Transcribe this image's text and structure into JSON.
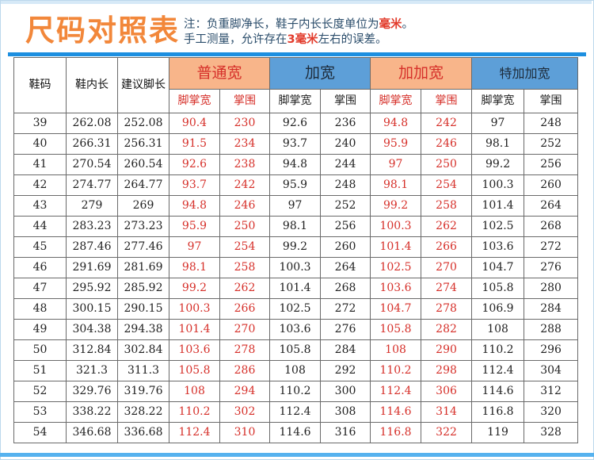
{
  "title": "尺码对照表",
  "note": {
    "line1_prefix": "注：负重脚净长，鞋子内长长度单位为",
    "line1_unit": "毫米",
    "line1_suffix": "。",
    "line2_prefix": "手工测量，允许存在",
    "line2_value": "3毫米",
    "line2_suffix": "左右的误差。"
  },
  "colors": {
    "title": "#f2873a",
    "accent_blue": "#1d8fe0",
    "orange_header": "#f8b58a",
    "blue_header": "#5d9fd8",
    "red_text": "#d6302a"
  },
  "table": {
    "headers": {
      "size": "鞋码",
      "inner_length": "鞋内长",
      "suggested_foot_length": "建议脚长",
      "groups": [
        "普通宽",
        "加宽",
        "加加宽",
        "特加加宽"
      ],
      "sub": [
        "脚掌宽",
        "掌围",
        "脚掌宽",
        "掌围",
        "脚掌宽",
        "掌围",
        "脚掌宽",
        "掌围"
      ]
    },
    "rows": [
      [
        "39",
        "262.08",
        "252.08",
        "90.4",
        "230",
        "92.6",
        "236",
        "94.8",
        "242",
        "97",
        "248"
      ],
      [
        "40",
        "266.31",
        "256.31",
        "91.5",
        "234",
        "93.7",
        "240",
        "95.9",
        "246",
        "98.1",
        "252"
      ],
      [
        "41",
        "270.54",
        "260.54",
        "92.6",
        "238",
        "94.8",
        "244",
        "97",
        "250",
        "99.2",
        "256"
      ],
      [
        "42",
        "274.77",
        "264.77",
        "93.7",
        "242",
        "95.9",
        "248",
        "98.1",
        "254",
        "100.3",
        "260"
      ],
      [
        "43",
        "279",
        "269",
        "94.8",
        "246",
        "97",
        "252",
        "99.2",
        "258",
        "101.4",
        "264"
      ],
      [
        "44",
        "283.23",
        "273.23",
        "95.9",
        "250",
        "98.1",
        "256",
        "100.3",
        "262",
        "102.5",
        "268"
      ],
      [
        "45",
        "287.46",
        "277.46",
        "97",
        "254",
        "99.2",
        "260",
        "101.4",
        "266",
        "103.6",
        "272"
      ],
      [
        "46",
        "291.69",
        "281.69",
        "98.1",
        "258",
        "100.3",
        "264",
        "102.5",
        "270",
        "104.7",
        "276"
      ],
      [
        "47",
        "295.92",
        "285.92",
        "99.2",
        "262",
        "101.4",
        "268",
        "103.6",
        "274",
        "105.8",
        "280"
      ],
      [
        "48",
        "300.15",
        "290.15",
        "100.3",
        "266",
        "102.5",
        "272",
        "104.7",
        "278",
        "106.9",
        "284"
      ],
      [
        "49",
        "304.38",
        "294.38",
        "101.4",
        "270",
        "103.6",
        "276",
        "105.8",
        "282",
        "108",
        "288"
      ],
      [
        "50",
        "312.84",
        "302.84",
        "103.6",
        "278",
        "105.8",
        "284",
        "108",
        "290",
        "110.2",
        "296"
      ],
      [
        "51",
        "321.3",
        "311.3",
        "105.8",
        "286",
        "108",
        "292",
        "110.2",
        "298",
        "112.4",
        "304"
      ],
      [
        "52",
        "329.76",
        "319.76",
        "108",
        "294",
        "110.2",
        "300",
        "112.4",
        "306",
        "114.6",
        "312"
      ],
      [
        "53",
        "338.22",
        "328.22",
        "110.2",
        "302",
        "112.4",
        "308",
        "114.6",
        "314",
        "116.8",
        "320"
      ],
      [
        "54",
        "346.68",
        "336.68",
        "112.4",
        "310",
        "114.6",
        "316",
        "116.8",
        "322",
        "119",
        "328"
      ]
    ]
  }
}
